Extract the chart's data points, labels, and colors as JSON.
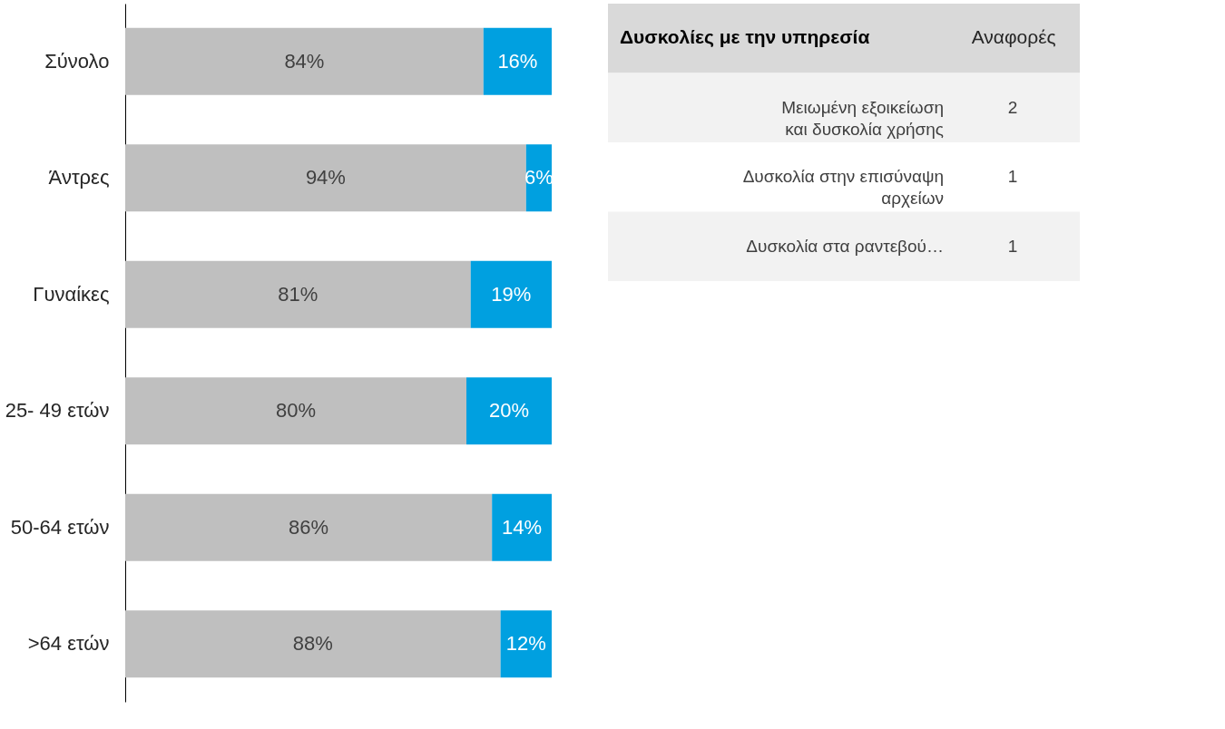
{
  "chart_data": [
    {
      "type": "bar",
      "orientation": "horizontal",
      "stacked": true,
      "categories": [
        "Σύνολο",
        "Άντρες",
        "Γυναίκες",
        "25- 49 ετών",
        "50-64 ετών",
        ">64 ετών"
      ],
      "series": [
        {
          "color": "#bfbfbf",
          "values": [
            84,
            94,
            81,
            80,
            86,
            88
          ],
          "value_labels": [
            "84%",
            "94%",
            "81%",
            "80%",
            "86%",
            "88%"
          ]
        },
        {
          "color": "#00a0e0",
          "values": [
            16,
            6,
            19,
            20,
            14,
            12
          ],
          "value_labels": [
            "16%",
            "6%",
            "19%",
            "20%",
            "14%",
            "12%"
          ]
        }
      ],
      "grid": false
    },
    {
      "type": "other",
      "annotations": [
        "Δυσκολίες με την υπηρεσία",
        "Αναφορές"
      ],
      "categories": [
        "Μειωμένη εξοικείωση\nκαι δυσκολία χρήσης",
        "Δυσκολία στην επισύναψη\nαρχείων",
        "Δυσκολία στα ραντεβού…"
      ],
      "values": [
        2,
        1,
        1
      ],
      "data_labels": true
    }
  ]
}
